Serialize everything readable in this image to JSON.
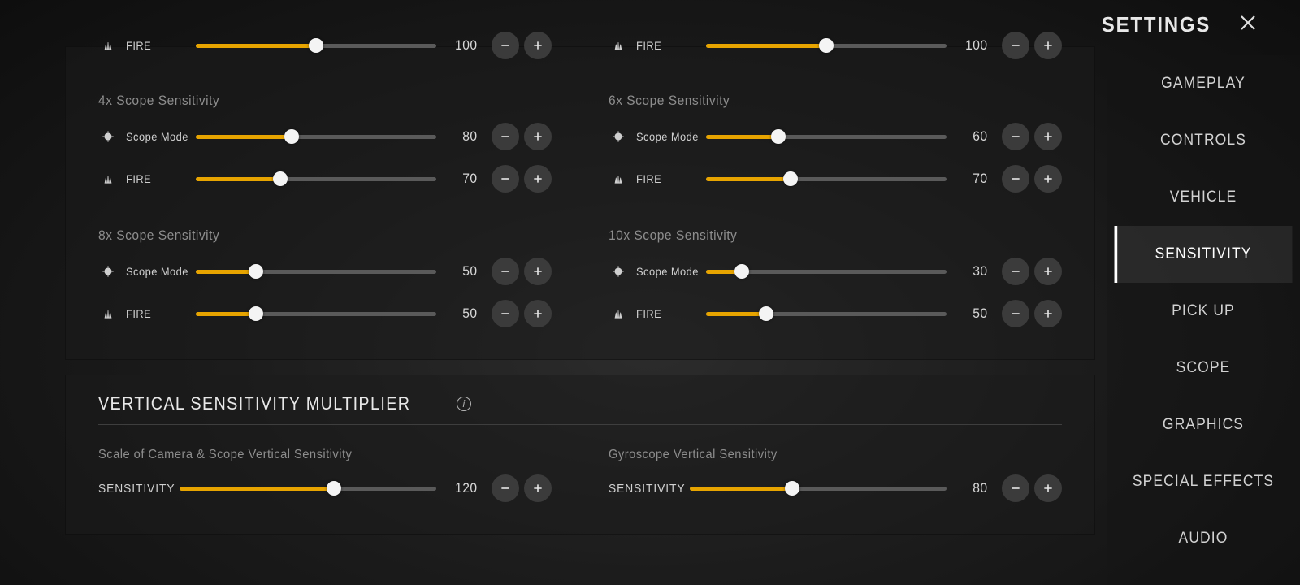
{
  "header": {
    "title": "SETTINGS"
  },
  "nav": {
    "items": [
      "GAMEPLAY",
      "CONTROLS",
      "VEHICLE",
      "SENSITIVITY",
      "PICK UP",
      "SCOPE",
      "GRAPHICS",
      "SPECIAL EFFECTS",
      "AUDIO"
    ],
    "active_index": 3
  },
  "colors": {
    "accent": "#e7a400",
    "track": "#5a5a5a",
    "thumb": "#f4f4f4",
    "panel_bg": "rgba(28,28,28,0.55)",
    "btn_bg": "#3b3b3b",
    "text": "#d0d0d0",
    "muted": "#8d8d8d"
  },
  "slider_max": 200,
  "peek": {
    "left": {
      "icon": "fire",
      "label": "FIRE",
      "value": 100
    },
    "right": {
      "icon": "fire",
      "label": "FIRE",
      "value": 100
    }
  },
  "scope_groups": [
    {
      "left": {
        "title": "4x Scope Sensitivity",
        "rows": [
          {
            "icon": "scope",
            "label": "Scope Mode",
            "value": 80
          },
          {
            "icon": "fire",
            "label": "FIRE",
            "value": 70
          }
        ]
      },
      "right": {
        "title": "6x Scope Sensitivity",
        "rows": [
          {
            "icon": "scope",
            "label": "Scope Mode",
            "value": 60
          },
          {
            "icon": "fire",
            "label": "FIRE",
            "value": 70
          }
        ]
      }
    },
    {
      "left": {
        "title": "8x Scope Sensitivity",
        "rows": [
          {
            "icon": "scope",
            "label": "Scope Mode",
            "value": 50
          },
          {
            "icon": "fire",
            "label": "FIRE",
            "value": 50
          }
        ]
      },
      "right": {
        "title": "10x Scope Sensitivity",
        "rows": [
          {
            "icon": "scope",
            "label": "Scope Mode",
            "value": 30
          },
          {
            "icon": "fire",
            "label": "FIRE",
            "value": 50
          }
        ]
      }
    }
  ],
  "vsm": {
    "heading": "VERTICAL SENSITIVITY MULTIPLIER",
    "left": {
      "sub": "Scale of Camera & Scope Vertical Sensitivity",
      "label": "SENSITIVITY",
      "value": 120
    },
    "right": {
      "sub": "Gyroscope Vertical Sensitivity",
      "label": "SENSITIVITY",
      "value": 80
    }
  }
}
